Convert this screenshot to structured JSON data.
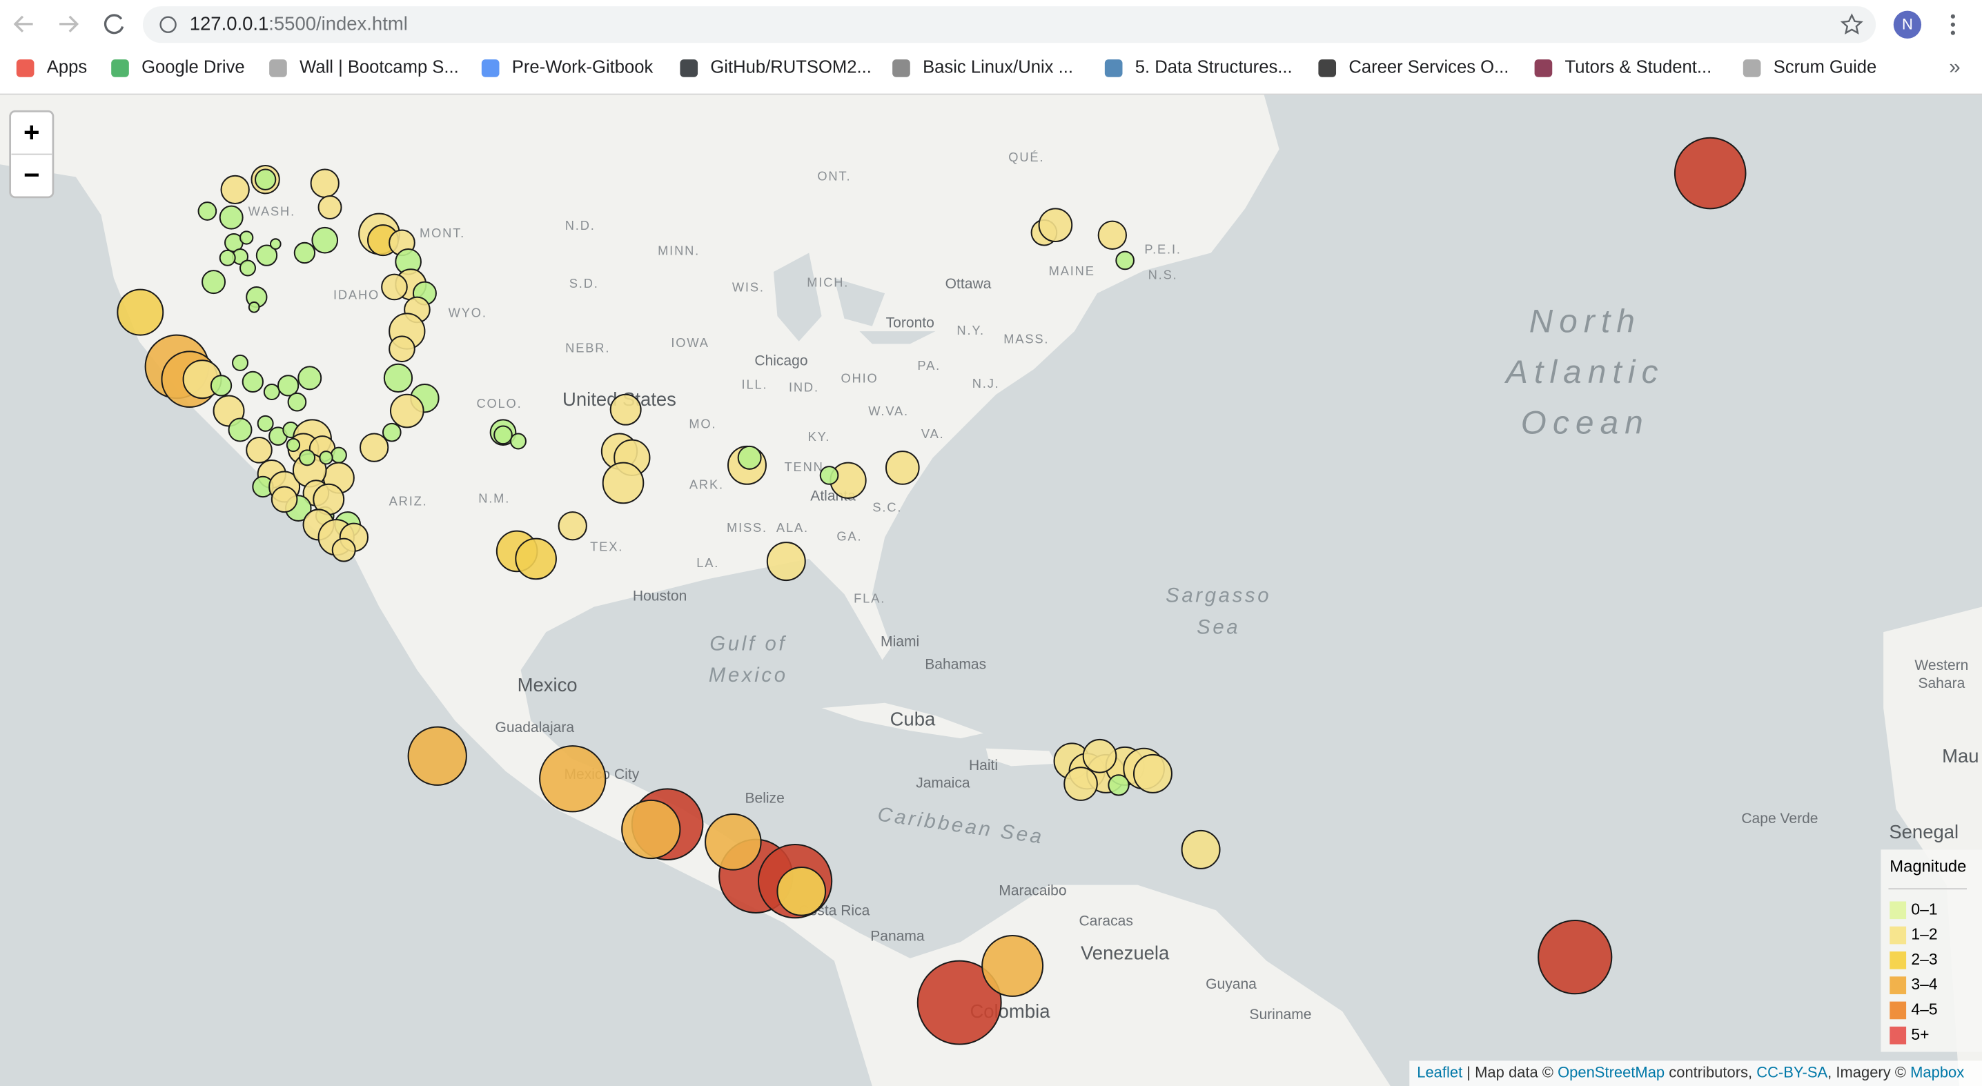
{
  "browser": {
    "url_host": "127.0.0.1",
    "url_path": ":5500/index.html",
    "profile": "N",
    "bookmarks": [
      "Apps",
      "Google Drive",
      "Wall | Bootcamp S...",
      "Pre-Work-Gitbook",
      "GitHub/RUTSOM2...",
      "Basic Linux/Unix ...",
      "5. Data Structures...",
      "Career Services O...",
      "Tutors & Student...",
      "Scrum Guide"
    ],
    "more": "»"
  },
  "map": {
    "zoom_in": "+",
    "zoom_out": "−",
    "labels": [
      "QUÉ.",
      "ONT.",
      "MAINE",
      "N.S.",
      "P.E.I.",
      "Ottawa",
      "Toronto",
      "N.Y.",
      "MASS.",
      "PA.",
      "N.J.",
      "OHIO",
      "W.VA.",
      "VA.",
      "IND.",
      "ILL.",
      "Chicago",
      "MICH.",
      "WIS.",
      "MINN.",
      "IOWA",
      "N.D.",
      "S.D.",
      "NEBR.",
      "MONT.",
      "WYO.",
      "IDAHO",
      "WASH.",
      "COLO.",
      "United States",
      "N.M.",
      "ARIZ.",
      "TEX.",
      "MO.",
      "ARK.",
      "KY.",
      "TENN.",
      "MISS.",
      "ALA.",
      "GA.",
      "S.C.",
      "LA.",
      "FLA.",
      "Atlanta",
      "Houston",
      "Miami",
      "Bahamas",
      "Gulf of",
      "Mexico",
      "Mexico",
      "Guadalajara",
      "Mexico City",
      "Cuba",
      "Haiti",
      "Jamaica",
      "Belize",
      "Caribbean Sea",
      "Costa Rica",
      "Panama",
      "Maracaibo",
      "Caracas",
      "Venezuela",
      "Guyana",
      "Suriname",
      "Colombia",
      "Sargasso",
      "Sea",
      "North",
      "Atlantic",
      "Ocean",
      "Western",
      "Sahara",
      "Mau",
      "Senegal",
      "Cape Verde"
    ],
    "legend": {
      "title": "Magnitude",
      "items": [
        {
          "label": "0–1",
          "color": "#e2f5a6"
        },
        {
          "label": "1–2",
          "color": "#f7e58e"
        },
        {
          "label": "2–3",
          "color": "#f6d44f"
        },
        {
          "label": "3–4",
          "color": "#f2b24b"
        },
        {
          "label": "4–5",
          "color": "#ef8f3c"
        },
        {
          "label": "5+",
          "color": "#e8605c"
        }
      ]
    },
    "attribution": [
      "Leaflet",
      " | Map data © ",
      "OpenStreetMap",
      " contributors, ",
      "CC-BY-SA",
      ", Imagery © ",
      "Mapbox"
    ]
  }
}
